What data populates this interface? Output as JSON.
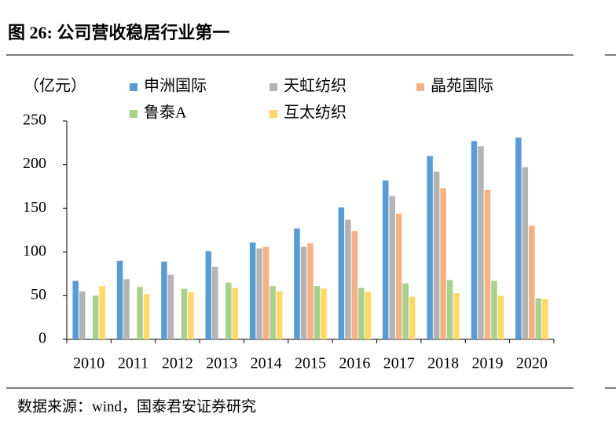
{
  "chart_data": {
    "type": "bar",
    "title": "图 26:  公司营收稳居行业第一",
    "unit_label": "（亿元）",
    "source": "数据来源：wind，国泰君安证券研究",
    "categories": [
      "2010",
      "2011",
      "2012",
      "2013",
      "2014",
      "2015",
      "2016",
      "2017",
      "2018",
      "2019",
      "2020"
    ],
    "series": [
      {
        "name": "申洲国际",
        "color": "#5b9bd5",
        "values": [
          67,
          90,
          89,
          101,
          111,
          127,
          151,
          182,
          210,
          227,
          231
        ]
      },
      {
        "name": "天虹纺织",
        "color": "#b4b4b4",
        "values": [
          55,
          69,
          74,
          83,
          104,
          106,
          137,
          164,
          192,
          221,
          197
        ]
      },
      {
        "name": "晶苑国际",
        "color": "#f4b183",
        "values": [
          null,
          null,
          null,
          null,
          106,
          110,
          124,
          144,
          173,
          171,
          130
        ]
      },
      {
        "name": "鲁泰A",
        "color": "#a9d18e",
        "values": [
          50,
          60,
          58,
          65,
          61,
          61,
          59,
          64,
          68,
          67,
          47
        ]
      },
      {
        "name": "互太纺织",
        "color": "#ffd966",
        "values": [
          61,
          52,
          54,
          59,
          55,
          58,
          54,
          49,
          53,
          50,
          46
        ]
      }
    ],
    "ylim": [
      0,
      250
    ],
    "yticks": [
      0,
      50,
      100,
      150,
      200,
      250
    ]
  }
}
